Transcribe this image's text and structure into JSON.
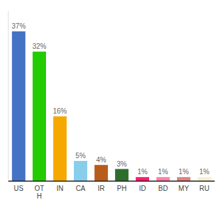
{
  "chart_data": {
    "type": "bar",
    "categories": [
      "US",
      "OT\nH",
      "IN",
      "CA",
      "IR",
      "PH",
      "ID",
      "BD",
      "MY",
      "RU"
    ],
    "values": [
      37,
      32,
      16,
      5,
      4,
      3,
      1,
      1,
      1,
      1
    ],
    "value_labels": [
      "37%",
      "32%",
      "16%",
      "5%",
      "4%",
      "3%",
      "1%",
      "1%",
      "1%",
      "1%"
    ],
    "colors": [
      "#4472c4",
      "#22cc00",
      "#f5a800",
      "#87ceeb",
      "#b85c1a",
      "#2d6e2d",
      "#ff1a6e",
      "#ff7faa",
      "#e08080",
      "#f5f0cc"
    ],
    "ylim": [
      0,
      42
    ],
    "data_labels": true,
    "tick_labels": "x"
  }
}
